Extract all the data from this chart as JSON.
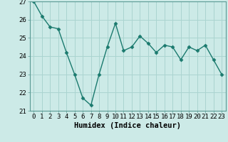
{
  "x": [
    0,
    1,
    2,
    3,
    4,
    5,
    6,
    7,
    8,
    9,
    10,
    11,
    12,
    13,
    14,
    15,
    16,
    17,
    18,
    19,
    20,
    21,
    22,
    23
  ],
  "y": [
    27.0,
    26.2,
    25.6,
    25.5,
    24.2,
    23.0,
    21.7,
    21.3,
    23.0,
    24.5,
    25.8,
    24.3,
    24.5,
    25.1,
    24.7,
    24.2,
    24.6,
    24.5,
    23.8,
    24.5,
    24.3,
    24.6,
    23.8,
    23.0
  ],
  "line_color": "#1a7a6e",
  "marker": "D",
  "marker_size": 2.5,
  "bg_color": "#cceae7",
  "grid_color": "#aad4d0",
  "xlabel": "Humidex (Indice chaleur)",
  "ylim": [
    21,
    27
  ],
  "xlim": [
    -0.5,
    23.5
  ],
  "yticks": [
    21,
    22,
    23,
    24,
    25,
    26,
    27
  ],
  "xticks": [
    0,
    1,
    2,
    3,
    4,
    5,
    6,
    7,
    8,
    9,
    10,
    11,
    12,
    13,
    14,
    15,
    16,
    17,
    18,
    19,
    20,
    21,
    22,
    23
  ],
  "xlabel_fontsize": 7.5,
  "tick_fontsize": 6.5,
  "spine_color": "#5a9a94",
  "line_width": 1.0
}
